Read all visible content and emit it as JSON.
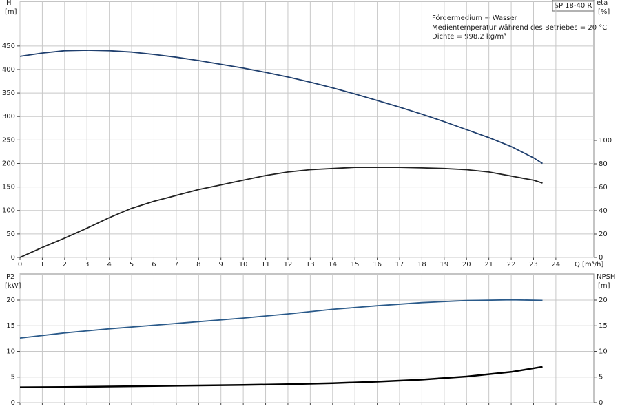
{
  "chart_data": [
    {
      "type": "line",
      "product": "SP 18-40 R",
      "annotations": [
        "Fördermedium = Wasser",
        "Medientemperatur während des Betriebes = 20 °C",
        "Dichte = 998.2 kg/m³"
      ],
      "y_label": "H",
      "y_unit": "[m]",
      "y2_label": "eta",
      "y2_unit": "[%]",
      "x_label": "Q [m³/h]",
      "x": [
        0,
        1,
        2,
        3,
        4,
        5,
        6,
        7,
        8,
        9,
        10,
        11,
        12,
        13,
        14,
        15,
        16,
        17,
        18,
        19,
        20,
        21,
        22,
        23,
        23.4
      ],
      "series": [
        {
          "color": "#1f3f6e",
          "axis": "y",
          "values": [
            428,
            435,
            440,
            441,
            440,
            437,
            432,
            426,
            419,
            411,
            403,
            394,
            384,
            373,
            361,
            348,
            334,
            320,
            305,
            289,
            272,
            255,
            236,
            212,
            200
          ]
        },
        {
          "color": "#222222",
          "axis": "y2",
          "values": [
            0,
            8.5,
            16.5,
            25,
            34,
            42,
            48,
            53,
            58,
            62,
            66,
            70,
            73,
            75,
            76,
            77,
            77,
            77,
            76.5,
            76,
            75,
            73,
            69.5,
            66,
            63.5
          ]
        }
      ],
      "xlim": [
        0,
        25.7
      ],
      "xticks": [
        0,
        1,
        2,
        3,
        4,
        5,
        6,
        7,
        8,
        9,
        10,
        11,
        12,
        13,
        14,
        15,
        16,
        17,
        18,
        19,
        20,
        21,
        22,
        23,
        24
      ],
      "ylim": [
        0,
        545
      ],
      "yticks": [
        0,
        50,
        100,
        150,
        200,
        250,
        300,
        350,
        400,
        450
      ],
      "y2lim": [
        0,
        218.8
      ],
      "y2ticks": [
        0,
        20,
        40,
        60,
        80,
        100
      ],
      "grid": true
    },
    {
      "type": "line",
      "y_label": "P2",
      "y_unit": "[kW]",
      "y2_label": "NPSH",
      "y2_unit": "[m]",
      "x": [
        0,
        2,
        4,
        6,
        8,
        10,
        12,
        14,
        16,
        18,
        20,
        22,
        23.4
      ],
      "series": [
        {
          "color": "#2a5a8a",
          "axis": "y",
          "values": [
            12.6,
            13.6,
            14.4,
            15.1,
            15.8,
            16.5,
            17.3,
            18.2,
            18.9,
            19.5,
            19.9,
            20.05,
            19.95
          ]
        },
        {
          "color": "#000000",
          "axis": "y2",
          "values": [
            3,
            3.05,
            3.15,
            3.25,
            3.35,
            3.45,
            3.6,
            3.8,
            4.1,
            4.5,
            5.1,
            6.0,
            7.0
          ]
        }
      ],
      "xlim": [
        0,
        25.7
      ],
      "ylim": [
        0,
        25.1
      ],
      "yticks": [
        0,
        5,
        10,
        15,
        20
      ],
      "y2lim": [
        0,
        25.1
      ],
      "y2ticks": [
        0,
        5,
        10,
        15,
        20
      ],
      "grid": true
    }
  ]
}
